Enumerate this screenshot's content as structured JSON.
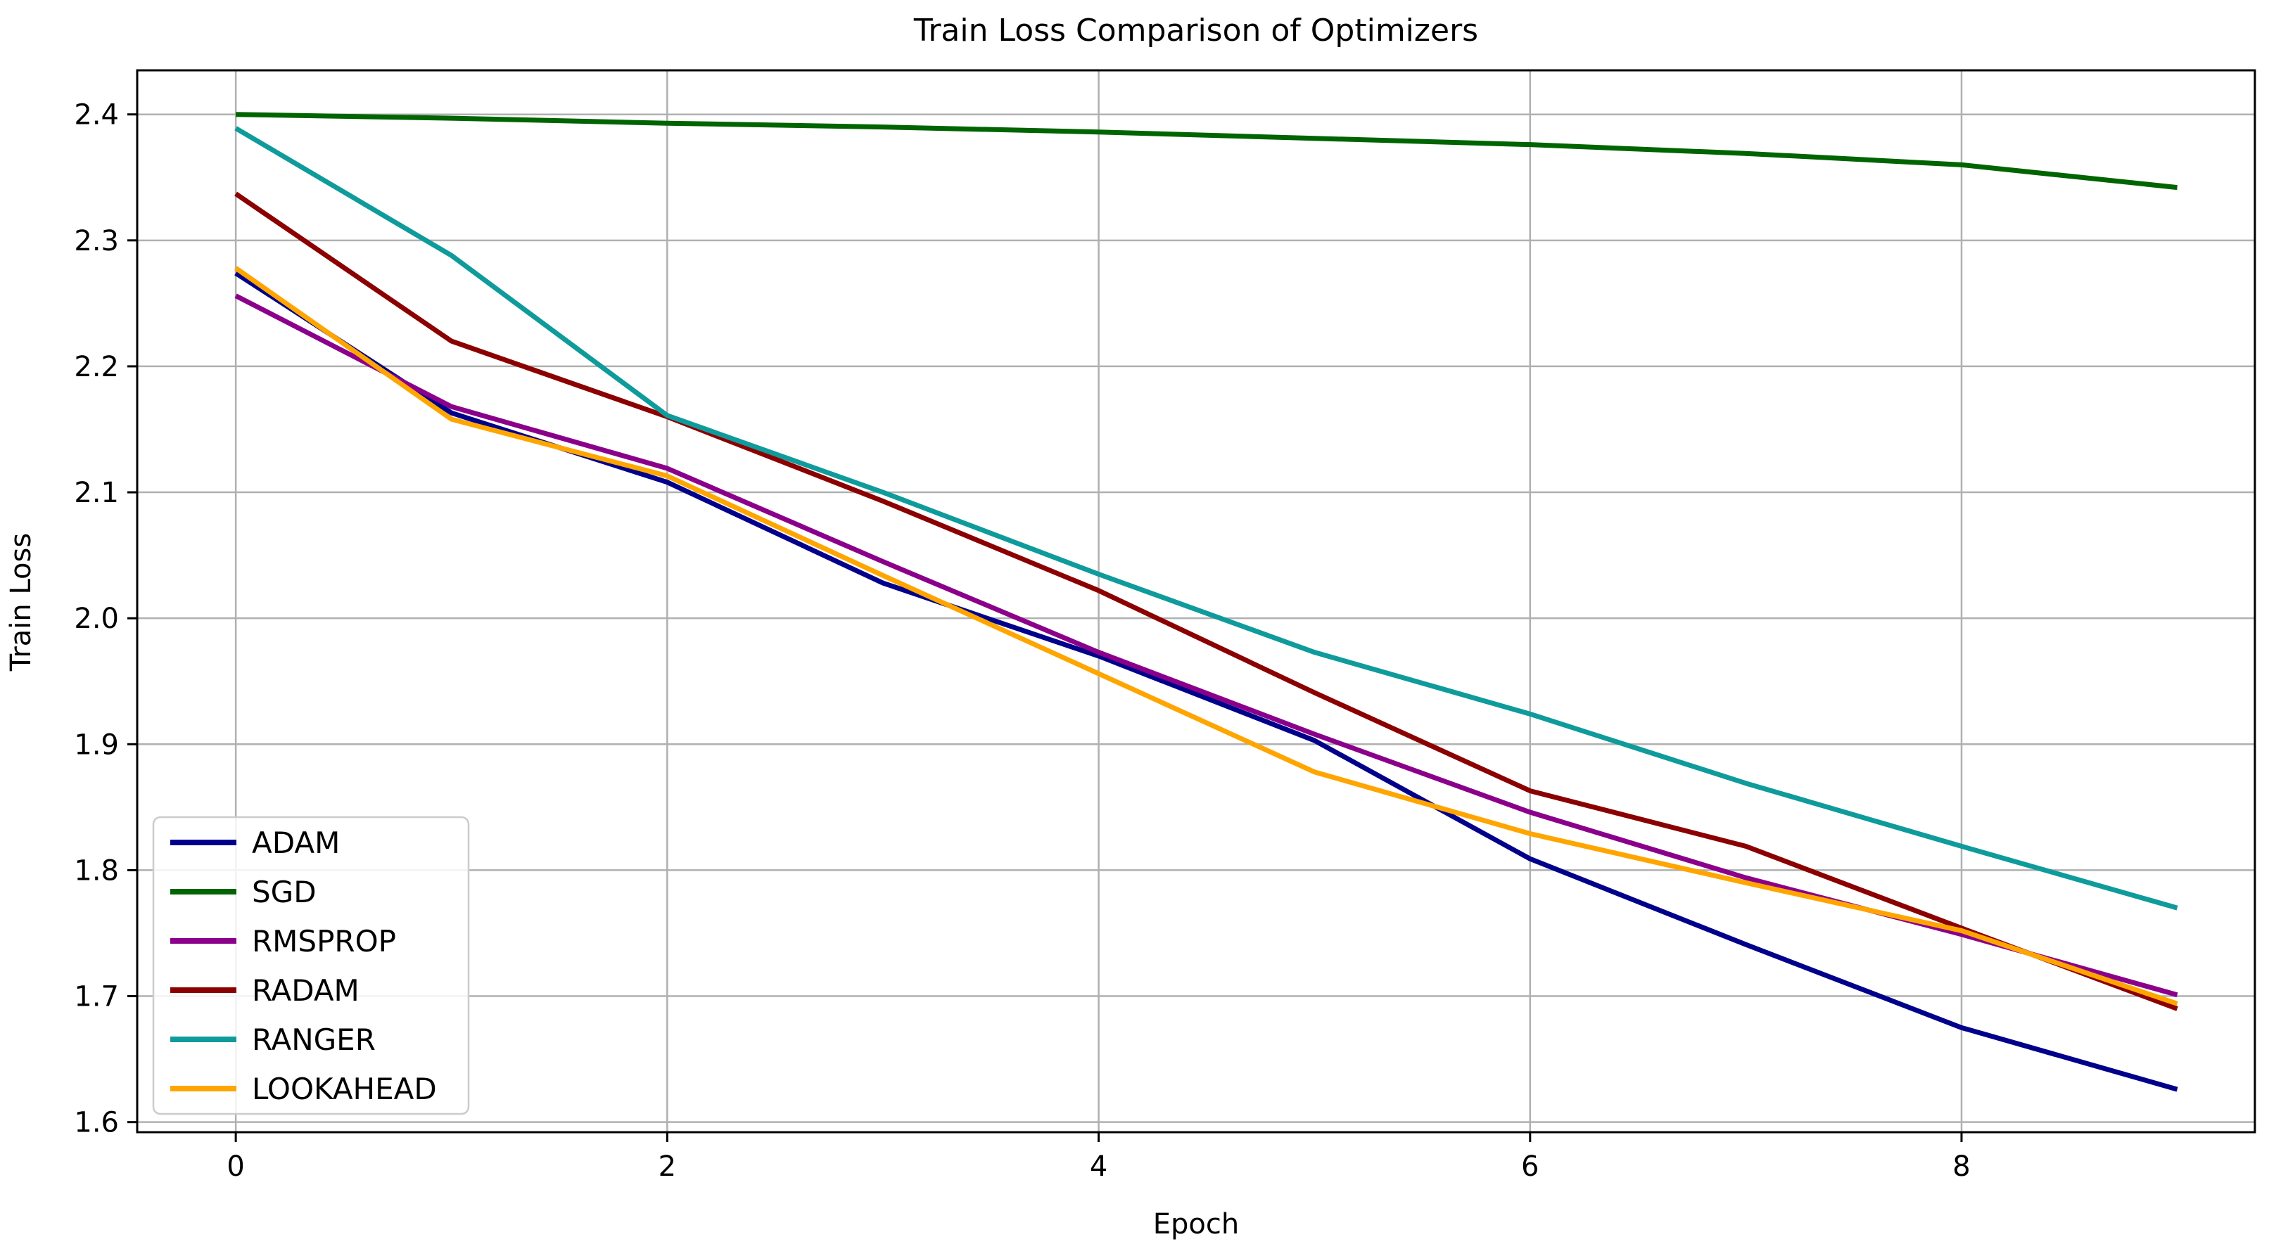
{
  "chart_data": {
    "type": "line",
    "title": "Train Loss Comparison of Optimizers",
    "xlabel": "Epoch",
    "ylabel": "Train Loss",
    "x": [
      0,
      1,
      2,
      3,
      4,
      5,
      6,
      7,
      8,
      9
    ],
    "series": [
      {
        "name": "ADAM",
        "color": "#00008B",
        "values": [
          2.274,
          2.163,
          2.108,
          2.028,
          1.97,
          1.903,
          1.809,
          1.741,
          1.675,
          1.626
        ]
      },
      {
        "name": "SGD",
        "color": "#006400",
        "values": [
          2.4,
          2.397,
          2.393,
          2.39,
          2.386,
          2.381,
          2.376,
          2.369,
          2.36,
          2.342
        ]
      },
      {
        "name": "RMSPROP",
        "color": "#8B008B",
        "values": [
          2.256,
          2.168,
          2.119,
          2.045,
          1.973,
          1.908,
          1.846,
          1.794,
          1.749,
          1.701
        ]
      },
      {
        "name": "RADAM",
        "color": "#8B0000",
        "values": [
          2.337,
          2.22,
          2.16,
          2.093,
          2.022,
          1.941,
          1.863,
          1.819,
          1.754,
          1.69
        ]
      },
      {
        "name": "RANGER",
        "color": "#0F9B9B",
        "values": [
          2.389,
          2.288,
          2.161,
          2.1,
          2.035,
          1.973,
          1.924,
          1.869,
          1.819,
          1.77
        ]
      },
      {
        "name": "LOOKAHEAD",
        "color": "#FFA500",
        "values": [
          2.278,
          2.158,
          2.113,
          2.034,
          1.956,
          1.878,
          1.829,
          1.79,
          1.752,
          1.694
        ]
      }
    ],
    "xlim": [
      -0.457,
      9.36
    ],
    "ylim": [
      1.592,
      2.435
    ],
    "xticks": [
      0,
      2,
      4,
      6,
      8
    ],
    "yticks": [
      1.6,
      1.7,
      1.8,
      1.9,
      2.0,
      2.1,
      2.2,
      2.3,
      2.4
    ],
    "grid": true,
    "legend_position": "lower left",
    "grid_color": "#b0b0b0",
    "axis_color": "#000000",
    "legend_border_color": "#cccccc"
  }
}
